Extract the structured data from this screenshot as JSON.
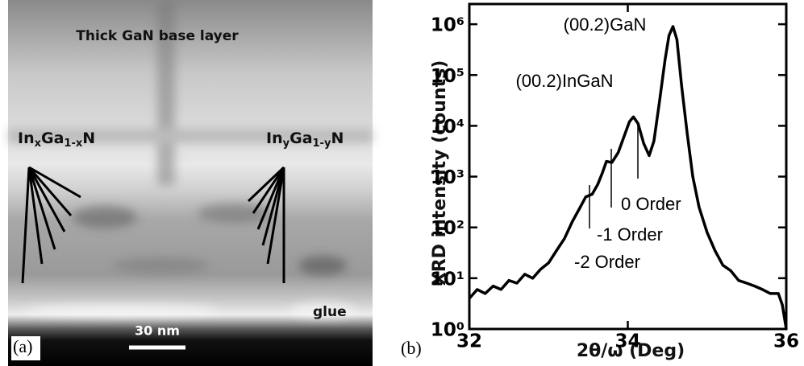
{
  "panel_a": {
    "title": "Thick GaN base layer",
    "left_layer": [
      "In",
      "x",
      "Ga",
      "1-x",
      "N"
    ],
    "right_layer": [
      "In",
      "y",
      "Ga",
      "1-y",
      "N"
    ],
    "glue": "glue",
    "scale_bar": "30 nm",
    "panel_label": "(a)"
  },
  "chart_data": {
    "type": "line",
    "panel_label": "(b)",
    "xlabel": "2θ/ω (Deg)",
    "ylabel": "XRD intensity (counts)",
    "annotations": [
      "(00.2)GaN",
      "(00.2)InGaN",
      "0 Order",
      "-1 Order",
      "-2 Order"
    ],
    "x": [
      32.0,
      32.1,
      32.2,
      32.3,
      32.4,
      32.5,
      32.6,
      32.7,
      32.8,
      32.9,
      33.0,
      33.1,
      33.2,
      33.3,
      33.4,
      33.47,
      33.55,
      33.62,
      33.68,
      33.73,
      33.8,
      33.88,
      33.95,
      34.02,
      34.07,
      34.13,
      34.2,
      34.27,
      34.33,
      34.4,
      34.47,
      34.52,
      34.57,
      34.62,
      34.68,
      34.75,
      34.82,
      34.9,
      35.0,
      35.1,
      35.2,
      35.3,
      35.4,
      35.5,
      35.6,
      35.7,
      35.8,
      35.9,
      35.95,
      36.0
    ],
    "values": [
      4,
      6,
      5,
      7,
      6,
      9,
      8,
      12,
      10,
      15,
      20,
      35,
      60,
      130,
      250,
      400,
      450,
      700,
      1200,
      2000,
      1900,
      3000,
      6000,
      12000,
      15000,
      11000,
      4500,
      2600,
      5000,
      30000,
      200000,
      600000,
      900000,
      500000,
      60000,
      7000,
      1000,
      250,
      80,
      35,
      18,
      14,
      9,
      8,
      7,
      6,
      5,
      5,
      3,
      1
    ],
    "color": "#000000",
    "xlim": [
      32,
      36
    ],
    "xticks": [
      32,
      34,
      36
    ],
    "ylim": [
      1,
      2500000
    ],
    "log_y": true,
    "yticks": [
      {
        "value": 1,
        "label": "10⁰"
      },
      {
        "value": 10,
        "label": "10¹"
      },
      {
        "value": 100,
        "label": "10²"
      },
      {
        "value": 1000,
        "label": "10³"
      },
      {
        "value": 10000,
        "label": "10⁴"
      },
      {
        "value": 100000,
        "label": "10⁵"
      },
      {
        "value": 1000000,
        "label": "10⁶"
      }
    ]
  }
}
